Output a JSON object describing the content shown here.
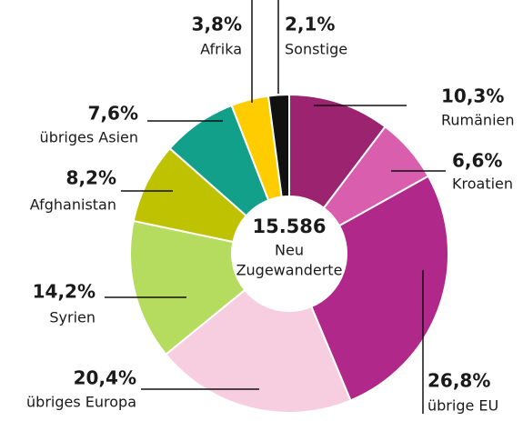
{
  "chart_data": {
    "type": "donut",
    "center_value": "15.586",
    "center_label": [
      "Neu",
      "Zugewanderte"
    ],
    "categories": [
      "Rumänien",
      "Kroatien",
      "übrige EU",
      "übriges Europa",
      "Syrien",
      "Afghanistan",
      "übriges Asien",
      "Afrika",
      "Sonstige"
    ],
    "values": [
      10.3,
      6.6,
      26.8,
      20.4,
      14.2,
      8.2,
      7.6,
      3.8,
      2.1
    ],
    "value_labels": [
      "10,3%",
      "6,6%",
      "26,8%",
      "20,4%",
      "14,2%",
      "8,2%",
      "7,6%",
      "3,8%",
      "2,1%"
    ],
    "colors": [
      "#9b2370",
      "#d95fae",
      "#b0288a",
      "#f7cde0",
      "#b5dc5e",
      "#bfc200",
      "#13a08a",
      "#ffcc00",
      "#111111"
    ]
  }
}
